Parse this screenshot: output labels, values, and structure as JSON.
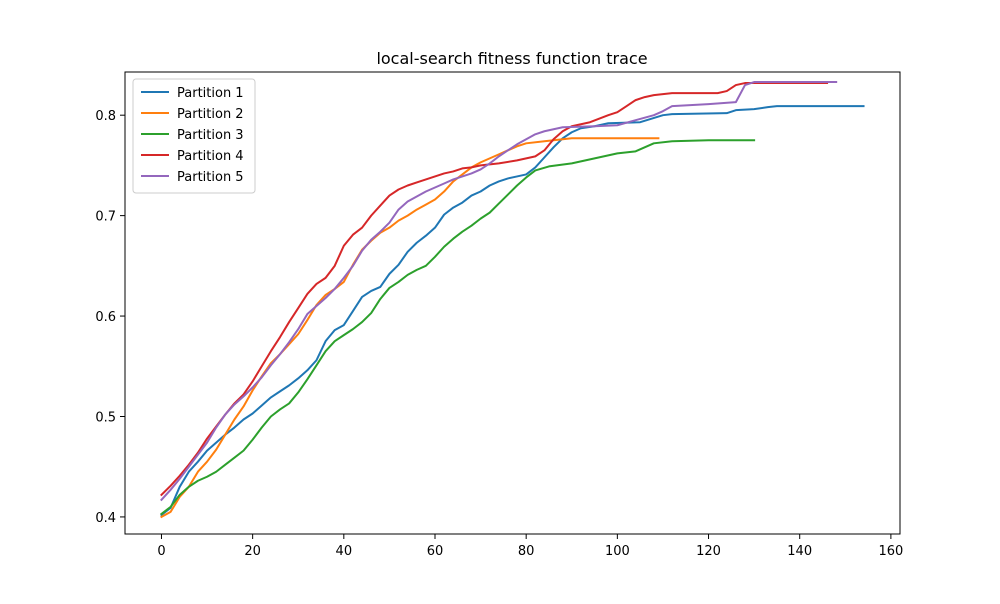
{
  "chart_data": {
    "type": "line",
    "title": "local-search fitness function trace",
    "xlabel": "",
    "ylabel": "",
    "xlim": [
      -8,
      162
    ],
    "ylim": [
      0.383,
      0.843
    ],
    "xticks": [
      0,
      20,
      40,
      60,
      80,
      100,
      120,
      140,
      160
    ],
    "yticks": [
      0.4,
      0.5,
      0.6,
      0.7,
      0.8
    ],
    "ytick_labels": [
      "0.4",
      "0.5",
      "0.6",
      "0.7",
      "0.8"
    ],
    "grid": false,
    "legend_position": "top-left",
    "series": [
      {
        "name": "Partition 1",
        "color": "#1f77b4",
        "points": [
          [
            0,
            0.402
          ],
          [
            2,
            0.409
          ],
          [
            4,
            0.43
          ],
          [
            6,
            0.445
          ],
          [
            8,
            0.455
          ],
          [
            10,
            0.466
          ],
          [
            12,
            0.474
          ],
          [
            14,
            0.482
          ],
          [
            16,
            0.489
          ],
          [
            18,
            0.497
          ],
          [
            20,
            0.503
          ],
          [
            22,
            0.511
          ],
          [
            24,
            0.519
          ],
          [
            26,
            0.525
          ],
          [
            28,
            0.531
          ],
          [
            30,
            0.538
          ],
          [
            32,
            0.546
          ],
          [
            34,
            0.556
          ],
          [
            36,
            0.575
          ],
          [
            38,
            0.586
          ],
          [
            40,
            0.591
          ],
          [
            42,
            0.605
          ],
          [
            44,
            0.619
          ],
          [
            46,
            0.625
          ],
          [
            48,
            0.629
          ],
          [
            50,
            0.642
          ],
          [
            52,
            0.651
          ],
          [
            54,
            0.664
          ],
          [
            56,
            0.673
          ],
          [
            58,
            0.68
          ],
          [
            60,
            0.688
          ],
          [
            62,
            0.701
          ],
          [
            64,
            0.708
          ],
          [
            66,
            0.713
          ],
          [
            68,
            0.72
          ],
          [
            70,
            0.724
          ],
          [
            72,
            0.73
          ],
          [
            74,
            0.734
          ],
          [
            76,
            0.737
          ],
          [
            78,
            0.739
          ],
          [
            80,
            0.741
          ],
          [
            82,
            0.748
          ],
          [
            84,
            0.758
          ],
          [
            86,
            0.768
          ],
          [
            88,
            0.777
          ],
          [
            90,
            0.783
          ],
          [
            92,
            0.787
          ],
          [
            95,
            0.789
          ],
          [
            98,
            0.792
          ],
          [
            105,
            0.793
          ],
          [
            110,
            0.8
          ],
          [
            112,
            0.801
          ],
          [
            124,
            0.802
          ],
          [
            126,
            0.805
          ],
          [
            130,
            0.806
          ],
          [
            133,
            0.808
          ],
          [
            135,
            0.809
          ],
          [
            154,
            0.809
          ]
        ]
      },
      {
        "name": "Partition 2",
        "color": "#ff7f0e",
        "points": [
          [
            0,
            0.4
          ],
          [
            2,
            0.405
          ],
          [
            4,
            0.42
          ],
          [
            6,
            0.43
          ],
          [
            8,
            0.445
          ],
          [
            10,
            0.455
          ],
          [
            12,
            0.467
          ],
          [
            14,
            0.482
          ],
          [
            16,
            0.497
          ],
          [
            18,
            0.51
          ],
          [
            20,
            0.526
          ],
          [
            22,
            0.54
          ],
          [
            24,
            0.553
          ],
          [
            26,
            0.562
          ],
          [
            28,
            0.572
          ],
          [
            30,
            0.582
          ],
          [
            32,
            0.596
          ],
          [
            34,
            0.611
          ],
          [
            36,
            0.621
          ],
          [
            38,
            0.627
          ],
          [
            40,
            0.634
          ],
          [
            42,
            0.651
          ],
          [
            44,
            0.666
          ],
          [
            46,
            0.675
          ],
          [
            48,
            0.683
          ],
          [
            50,
            0.688
          ],
          [
            52,
            0.695
          ],
          [
            54,
            0.7
          ],
          [
            56,
            0.706
          ],
          [
            58,
            0.711
          ],
          [
            60,
            0.716
          ],
          [
            62,
            0.724
          ],
          [
            64,
            0.734
          ],
          [
            66,
            0.741
          ],
          [
            68,
            0.748
          ],
          [
            70,
            0.753
          ],
          [
            72,
            0.757
          ],
          [
            74,
            0.761
          ],
          [
            76,
            0.765
          ],
          [
            78,
            0.769
          ],
          [
            80,
            0.772
          ],
          [
            84,
            0.774
          ],
          [
            88,
            0.776
          ],
          [
            90,
            0.777
          ],
          [
            109,
            0.777
          ]
        ]
      },
      {
        "name": "Partition 3",
        "color": "#2ca02c",
        "points": [
          [
            0,
            0.403
          ],
          [
            2,
            0.41
          ],
          [
            4,
            0.422
          ],
          [
            6,
            0.43
          ],
          [
            8,
            0.436
          ],
          [
            10,
            0.44
          ],
          [
            12,
            0.445
          ],
          [
            14,
            0.452
          ],
          [
            16,
            0.459
          ],
          [
            18,
            0.466
          ],
          [
            20,
            0.477
          ],
          [
            22,
            0.489
          ],
          [
            24,
            0.5
          ],
          [
            26,
            0.507
          ],
          [
            28,
            0.513
          ],
          [
            30,
            0.524
          ],
          [
            32,
            0.537
          ],
          [
            34,
            0.551
          ],
          [
            36,
            0.565
          ],
          [
            38,
            0.575
          ],
          [
            40,
            0.581
          ],
          [
            42,
            0.587
          ],
          [
            44,
            0.594
          ],
          [
            46,
            0.603
          ],
          [
            48,
            0.617
          ],
          [
            50,
            0.628
          ],
          [
            52,
            0.634
          ],
          [
            54,
            0.641
          ],
          [
            56,
            0.646
          ],
          [
            58,
            0.65
          ],
          [
            60,
            0.659
          ],
          [
            62,
            0.669
          ],
          [
            64,
            0.677
          ],
          [
            66,
            0.684
          ],
          [
            68,
            0.69
          ],
          [
            70,
            0.697
          ],
          [
            72,
            0.703
          ],
          [
            74,
            0.712
          ],
          [
            76,
            0.721
          ],
          [
            78,
            0.73
          ],
          [
            80,
            0.738
          ],
          [
            82,
            0.745
          ],
          [
            85,
            0.749
          ],
          [
            90,
            0.752
          ],
          [
            95,
            0.757
          ],
          [
            100,
            0.762
          ],
          [
            104,
            0.764
          ],
          [
            108,
            0.772
          ],
          [
            112,
            0.774
          ],
          [
            120,
            0.775
          ],
          [
            130,
            0.775
          ]
        ]
      },
      {
        "name": "Partition 4",
        "color": "#d62728",
        "points": [
          [
            0,
            0.422
          ],
          [
            2,
            0.431
          ],
          [
            4,
            0.441
          ],
          [
            6,
            0.452
          ],
          [
            8,
            0.464
          ],
          [
            10,
            0.478
          ],
          [
            12,
            0.49
          ],
          [
            14,
            0.502
          ],
          [
            16,
            0.513
          ],
          [
            18,
            0.522
          ],
          [
            20,
            0.535
          ],
          [
            22,
            0.55
          ],
          [
            24,
            0.565
          ],
          [
            26,
            0.579
          ],
          [
            28,
            0.594
          ],
          [
            30,
            0.608
          ],
          [
            32,
            0.622
          ],
          [
            34,
            0.632
          ],
          [
            36,
            0.638
          ],
          [
            38,
            0.65
          ],
          [
            40,
            0.67
          ],
          [
            42,
            0.681
          ],
          [
            44,
            0.688
          ],
          [
            46,
            0.7
          ],
          [
            48,
            0.71
          ],
          [
            50,
            0.72
          ],
          [
            52,
            0.726
          ],
          [
            54,
            0.73
          ],
          [
            56,
            0.733
          ],
          [
            58,
            0.736
          ],
          [
            60,
            0.739
          ],
          [
            62,
            0.742
          ],
          [
            64,
            0.744
          ],
          [
            66,
            0.747
          ],
          [
            68,
            0.748
          ],
          [
            70,
            0.75
          ],
          [
            74,
            0.752
          ],
          [
            78,
            0.755
          ],
          [
            82,
            0.759
          ],
          [
            84,
            0.765
          ],
          [
            86,
            0.776
          ],
          [
            88,
            0.784
          ],
          [
            90,
            0.789
          ],
          [
            94,
            0.793
          ],
          [
            98,
            0.8
          ],
          [
            100,
            0.803
          ],
          [
            102,
            0.809
          ],
          [
            104,
            0.815
          ],
          [
            106,
            0.818
          ],
          [
            108,
            0.82
          ],
          [
            112,
            0.822
          ],
          [
            122,
            0.822
          ],
          [
            124,
            0.824
          ],
          [
            126,
            0.83
          ],
          [
            128,
            0.832
          ],
          [
            146,
            0.832
          ]
        ]
      },
      {
        "name": "Partition 5",
        "color": "#9467bd",
        "points": [
          [
            0,
            0.417
          ],
          [
            2,
            0.427
          ],
          [
            4,
            0.438
          ],
          [
            6,
            0.45
          ],
          [
            8,
            0.462
          ],
          [
            10,
            0.474
          ],
          [
            12,
            0.489
          ],
          [
            14,
            0.502
          ],
          [
            16,
            0.512
          ],
          [
            18,
            0.52
          ],
          [
            20,
            0.529
          ],
          [
            22,
            0.539
          ],
          [
            24,
            0.551
          ],
          [
            26,
            0.562
          ],
          [
            28,
            0.574
          ],
          [
            30,
            0.587
          ],
          [
            32,
            0.602
          ],
          [
            34,
            0.61
          ],
          [
            36,
            0.618
          ],
          [
            38,
            0.627
          ],
          [
            40,
            0.638
          ],
          [
            42,
            0.65
          ],
          [
            44,
            0.665
          ],
          [
            46,
            0.676
          ],
          [
            48,
            0.684
          ],
          [
            50,
            0.693
          ],
          [
            52,
            0.706
          ],
          [
            54,
            0.714
          ],
          [
            56,
            0.719
          ],
          [
            58,
            0.724
          ],
          [
            60,
            0.728
          ],
          [
            62,
            0.732
          ],
          [
            64,
            0.736
          ],
          [
            66,
            0.739
          ],
          [
            68,
            0.742
          ],
          [
            70,
            0.746
          ],
          [
            72,
            0.752
          ],
          [
            74,
            0.759
          ],
          [
            76,
            0.765
          ],
          [
            78,
            0.771
          ],
          [
            80,
            0.776
          ],
          [
            82,
            0.781
          ],
          [
            84,
            0.784
          ],
          [
            86,
            0.786
          ],
          [
            88,
            0.788
          ],
          [
            95,
            0.789
          ],
          [
            100,
            0.79
          ],
          [
            104,
            0.795
          ],
          [
            108,
            0.8
          ],
          [
            110,
            0.804
          ],
          [
            112,
            0.809
          ],
          [
            120,
            0.811
          ],
          [
            126,
            0.813
          ],
          [
            128,
            0.83
          ],
          [
            130,
            0.833
          ],
          [
            148,
            0.833
          ]
        ]
      }
    ]
  }
}
